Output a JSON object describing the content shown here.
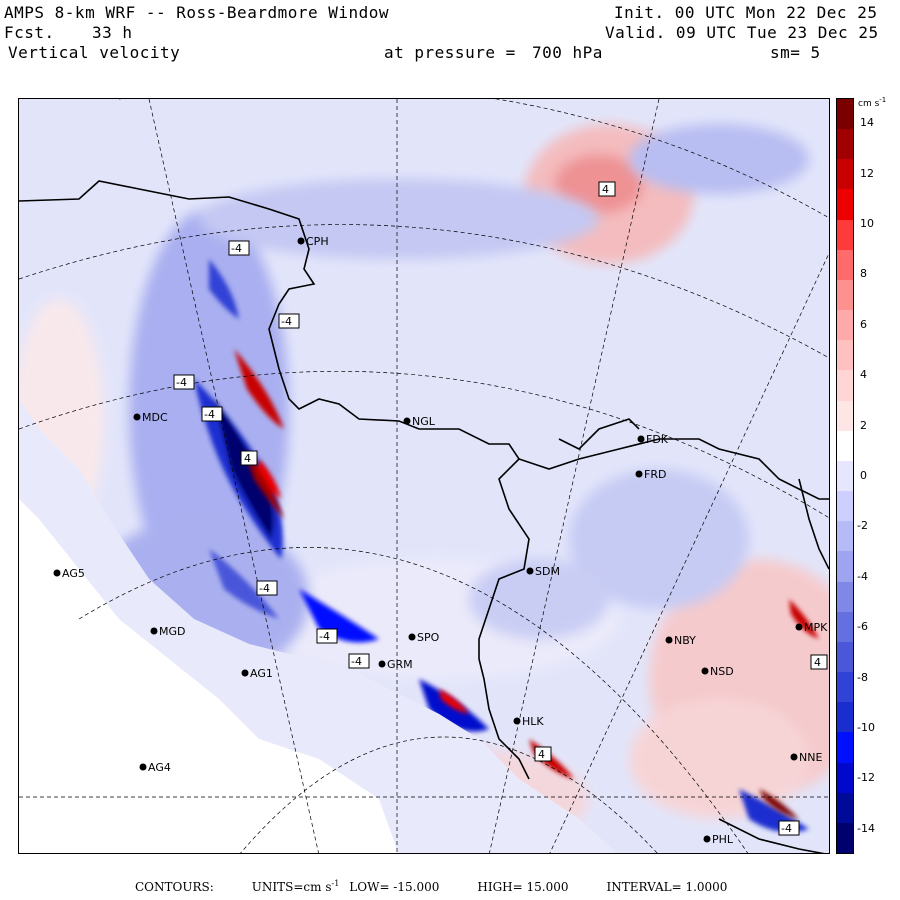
{
  "header": {
    "title": "AMPS 8-km WRF -- Ross-Beardmore Window",
    "forecast_label": "Fcst.",
    "forecast_hours": "33 h",
    "field": "Vertical velocity",
    "pressure_label": "at pressure =",
    "pressure_value": "700 hPa",
    "init": "Init. 00 UTC Mon 22 Dec 25",
    "valid": "Valid. 09 UTC Tue 23 Dec 25",
    "smoothing": "sm= 5"
  },
  "colorbar": {
    "unit": "cm s",
    "unit_exp": "-1",
    "ticks": [
      "14",
      "12",
      "10",
      "8",
      "6",
      "4",
      "2",
      "0",
      "-2",
      "-4",
      "-6",
      "-8",
      "-10",
      "-12",
      "-14"
    ],
    "colors": [
      "#7a0000",
      "#a10000",
      "#c80000",
      "#ee0000",
      "#ff3a3a",
      "#ff6a6a",
      "#ff9090",
      "#ffaaaa",
      "#ffc0c0",
      "#ffd5d5",
      "#ffe6e6",
      "#ffffff",
      "#e6e6ff",
      "#cdd0ff",
      "#b6baf6",
      "#9ea4ef",
      "#8088e7",
      "#6470e0",
      "#4a57d9",
      "#3142d6",
      "#1a2ed0",
      "#0010ff",
      "#0008cc",
      "#000a99",
      "#00006e"
    ]
  },
  "stations": [
    {
      "name": "CPH"
    },
    {
      "name": "MDC"
    },
    {
      "name": "NGL"
    },
    {
      "name": "FDK"
    },
    {
      "name": "FRD"
    },
    {
      "name": "SDM"
    },
    {
      "name": "AG5"
    },
    {
      "name": "MGD"
    },
    {
      "name": "AG1"
    },
    {
      "name": "AG4"
    },
    {
      "name": "NBY"
    },
    {
      "name": "NSD"
    },
    {
      "name": "MPK"
    },
    {
      "name": "PHL"
    },
    {
      "name": "NNE"
    },
    {
      "name": "HLK"
    },
    {
      "name": "SPO"
    },
    {
      "name": "GRM"
    }
  ],
  "contour_labels": [
    "-4",
    "-4",
    "-4",
    "-4",
    "-4",
    "-4",
    "-4",
    "-4",
    "4",
    "4",
    "4",
    "4"
  ],
  "footer": {
    "contours_label": "CONTOURS:",
    "units": "UNITS=cm s",
    "units_exp": "-1",
    "low": "LOW= -15.000",
    "high": "HIGH= 15.000",
    "interval": "INTERVAL= 1.0000"
  }
}
